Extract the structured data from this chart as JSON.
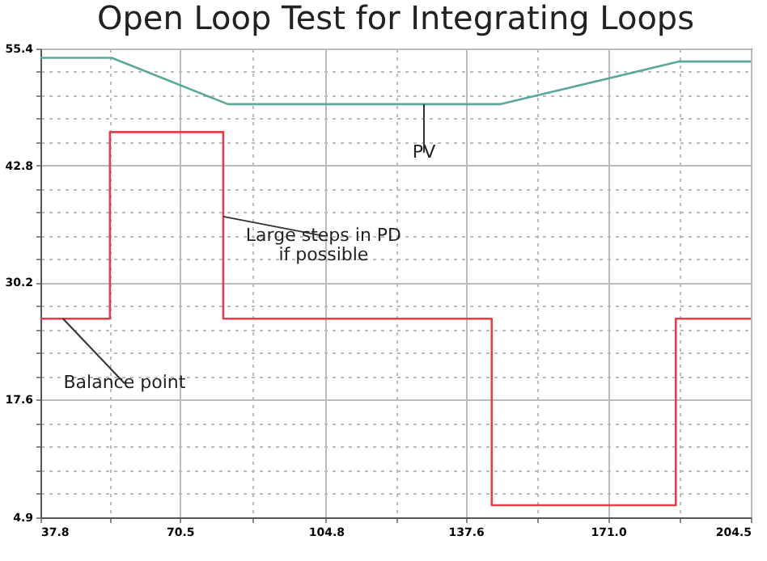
{
  "chart_data": {
    "type": "line",
    "title": "Open Loop Test for Integrating Loops",
    "series": [
      {
        "color": "#5aa89a",
        "x": [
          37.8,
          54.5,
          81.8,
          145.6,
          187.7,
          204.5
        ],
        "values": [
          54.4,
          54.4,
          49.4,
          49.4,
          54.0,
          54.0
        ]
      },
      {
        "color": "#e0404a",
        "x": [
          37.8,
          54.1,
          54.1,
          80.7,
          80.7,
          143.7,
          143.7,
          186.9,
          186.9,
          204.5
        ],
        "values": [
          26.3,
          26.3,
          46.4,
          46.4,
          26.3,
          26.3,
          6.2,
          6.2,
          26.3,
          26.3
        ]
      }
    ],
    "xlim": [
      37.8,
      204.5
    ],
    "ylim": [
      4.9,
      55.4
    ],
    "xticks": [
      37.8,
      {
        "value": 54.15,
        "label": null
      },
      70.5,
      {
        "value": 87.65,
        "label": null
      },
      104.8,
      {
        "value": 121.2,
        "label": null
      },
      137.6,
      {
        "value": 154.3,
        "label": null
      },
      {
        "value": 171,
        "label": "171.0"
      },
      {
        "value": 187.75,
        "label": null
      },
      204.5
    ],
    "yticks": [
      4.9,
      {
        "value": 7.44,
        "label": null
      },
      {
        "value": 9.98,
        "label": null
      },
      {
        "value": 12.52,
        "label": null
      },
      {
        "value": 15.06,
        "label": null
      },
      17.6,
      {
        "value": 20.12,
        "label": null
      },
      {
        "value": 22.64,
        "label": null
      },
      {
        "value": 25.16,
        "label": null
      },
      {
        "value": 27.68,
        "label": null
      },
      30.2,
      {
        "value": 32.72,
        "label": null
      },
      {
        "value": 35.24,
        "label": null
      },
      {
        "value": 37.76,
        "label": null
      },
      {
        "value": 40.28,
        "label": null
      },
      42.8,
      {
        "value": 45.32,
        "label": null
      },
      {
        "value": 47.84,
        "label": null
      },
      {
        "value": 50.36,
        "label": null
      },
      {
        "value": 52.88,
        "label": null
      },
      55.4
    ],
    "grid": true,
    "marker": "none",
    "line_style": "solid",
    "annotations": [
      {
        "text": "PV",
        "x": 127.8,
        "y": 49.4
      },
      {
        "text": "Large steps in PD\nif possible",
        "x": 80.7,
        "y": 37.3
      },
      {
        "text": "Balance point",
        "x": 43.1,
        "y": 26.3
      }
    ]
  }
}
